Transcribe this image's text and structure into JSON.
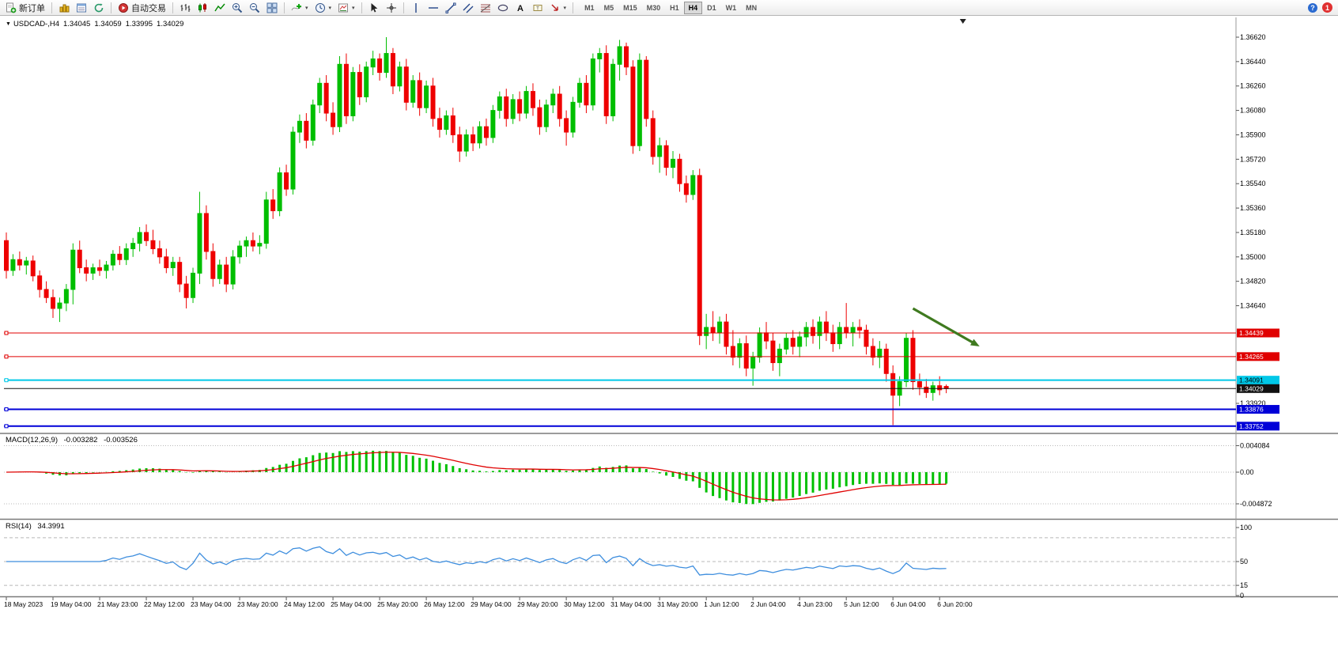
{
  "toolbar": {
    "new_order": {
      "label": "新订单"
    },
    "autotrading": {
      "label": "自动交易"
    },
    "timeframes": [
      {
        "label": "M1",
        "active": false
      },
      {
        "label": "M5",
        "active": false
      },
      {
        "label": "M15",
        "active": false
      },
      {
        "label": "M30",
        "active": false
      },
      {
        "label": "H1",
        "active": false
      },
      {
        "label": "H4",
        "active": true
      },
      {
        "label": "D1",
        "active": false
      },
      {
        "label": "W1",
        "active": false
      },
      {
        "label": "MN",
        "active": false
      }
    ],
    "notification_count": "1"
  },
  "chart_header": {
    "collapse_marker": "▼",
    "symbol": "USDCAD-,H4",
    "open": "1.34045",
    "high": "1.34059",
    "low": "1.33995",
    "close": "1.34029"
  },
  "macd_header": {
    "label": "MACD(12,26,9)",
    "value_main": "-0.003282",
    "value_signal": "-0.003526"
  },
  "rsi_header": {
    "label": "RSI(14)",
    "value": "34.3991"
  },
  "chart_data": {
    "type": "candlestick",
    "symbol": "USDCAD-",
    "timeframe": "H4",
    "colors": {
      "up": "#00BE00",
      "down": "#EE0000",
      "background": "#FFFFFF",
      "foreground": "#000000"
    },
    "price_axis": {
      "step": 0.0018,
      "visible_labels": [
        "1.36620",
        "1.36440",
        "1.36260",
        "1.36080",
        "1.35900",
        "1.35720",
        "1.35540",
        "1.35360",
        "1.35180",
        "1.35000",
        "1.34820",
        "1.34640",
        "1.33920"
      ]
    },
    "levels": [
      {
        "price": 1.34439,
        "label": "1.34439",
        "color": "#E00000",
        "width": 1,
        "text_color": "#FFFFFF"
      },
      {
        "price": 1.34265,
        "label": "1.34265",
        "color": "#E00000",
        "width": 1,
        "text_color": "#FFFFFF"
      },
      {
        "price": 1.34091,
        "label": "1.34091",
        "color": "#00C8E8",
        "width": 2,
        "text_color": "#000000"
      },
      {
        "price": 1.33876,
        "label": "1.33876",
        "color": "#0000D8",
        "width": 2,
        "text_color": "#FFFFFF"
      },
      {
        "price": 1.33752,
        "label": "1.33752",
        "color": "#0000D8",
        "width": 2,
        "text_color": "#FFFFFF"
      }
    ],
    "current_price": {
      "price": 1.34029,
      "label": "1.34029",
      "color": "#111111",
      "text_color": "#FFFFFF"
    },
    "time_labels": [
      "18 May 2023",
      "19 May 04:00",
      "21 May 23:00",
      "22 May 12:00",
      "23 May 04:00",
      "23 May 20:00",
      "24 May 12:00",
      "25 May 04:00",
      "25 May 20:00",
      "26 May 12:00",
      "29 May 04:00",
      "29 May 20:00",
      "30 May 12:00",
      "31 May 04:00",
      "31 May 20:00",
      "1 Jun 12:00",
      "2 Jun 04:00",
      "4 Jun 23:00",
      "5 Jun 12:00",
      "6 Jun 04:00",
      "6 Jun 20:00"
    ],
    "label_stride": 7,
    "candles": [
      [
        1.3512,
        1.3518,
        1.3484,
        1.349
      ],
      [
        1.349,
        1.3502,
        1.3486,
        1.3498
      ],
      [
        1.3498,
        1.3504,
        1.349,
        1.3494
      ],
      [
        1.3494,
        1.35,
        1.3487,
        1.3497
      ],
      [
        1.3497,
        1.3501,
        1.3482,
        1.3486
      ],
      [
        1.3486,
        1.349,
        1.347,
        1.3476
      ],
      [
        1.3476,
        1.3482,
        1.3466,
        1.347
      ],
      [
        1.347,
        1.3476,
        1.3455,
        1.3462
      ],
      [
        1.3462,
        1.347,
        1.3452,
        1.3466
      ],
      [
        1.3466,
        1.348,
        1.346,
        1.3476
      ],
      [
        1.3476,
        1.351,
        1.3465,
        1.3505
      ],
      [
        1.3505,
        1.3512,
        1.3488,
        1.3492
      ],
      [
        1.3492,
        1.3498,
        1.3482,
        1.3488
      ],
      [
        1.3488,
        1.3495,
        1.3483,
        1.3492
      ],
      [
        1.3492,
        1.3498,
        1.3486,
        1.349
      ],
      [
        1.349,
        1.3497,
        1.3484,
        1.3494
      ],
      [
        1.3494,
        1.3505,
        1.349,
        1.3502
      ],
      [
        1.3502,
        1.3508,
        1.3494,
        1.3498
      ],
      [
        1.3498,
        1.351,
        1.3494,
        1.3506
      ],
      [
        1.3506,
        1.3514,
        1.35,
        1.351
      ],
      [
        1.351,
        1.3522,
        1.3504,
        1.3518
      ],
      [
        1.3518,
        1.3524,
        1.3508,
        1.3512
      ],
      [
        1.3512,
        1.352,
        1.3502,
        1.3506
      ],
      [
        1.3506,
        1.3512,
        1.3495,
        1.35
      ],
      [
        1.35,
        1.3506,
        1.3488,
        1.3492
      ],
      [
        1.3492,
        1.35,
        1.3486,
        1.3496
      ],
      [
        1.3496,
        1.35,
        1.3474,
        1.348
      ],
      [
        1.348,
        1.3486,
        1.3462,
        1.347
      ],
      [
        1.347,
        1.3492,
        1.3466,
        1.3488
      ],
      [
        1.3488,
        1.3548,
        1.348,
        1.3532
      ],
      [
        1.3532,
        1.3538,
        1.3498,
        1.3504
      ],
      [
        1.3504,
        1.351,
        1.3478,
        1.3484
      ],
      [
        1.3484,
        1.3498,
        1.348,
        1.3494
      ],
      [
        1.3494,
        1.35,
        1.3474,
        1.348
      ],
      [
        1.348,
        1.3505,
        1.3476,
        1.35
      ],
      [
        1.35,
        1.3512,
        1.3495,
        1.3508
      ],
      [
        1.3508,
        1.3515,
        1.35,
        1.3512
      ],
      [
        1.3512,
        1.3518,
        1.3504,
        1.3508
      ],
      [
        1.3508,
        1.3516,
        1.3502,
        1.351
      ],
      [
        1.351,
        1.3548,
        1.3506,
        1.3542
      ],
      [
        1.3542,
        1.355,
        1.3528,
        1.3534
      ],
      [
        1.3534,
        1.3566,
        1.353,
        1.3562
      ],
      [
        1.3562,
        1.3568,
        1.3545,
        1.355
      ],
      [
        1.355,
        1.3596,
        1.3546,
        1.3592
      ],
      [
        1.3592,
        1.3605,
        1.3584,
        1.36
      ],
      [
        1.36,
        1.3606,
        1.358,
        1.3586
      ],
      [
        1.3586,
        1.3616,
        1.3582,
        1.3612
      ],
      [
        1.3612,
        1.3632,
        1.3606,
        1.3628
      ],
      [
        1.3628,
        1.3634,
        1.36,
        1.3606
      ],
      [
        1.3606,
        1.3614,
        1.359,
        1.3596
      ],
      [
        1.3596,
        1.3648,
        1.3592,
        1.3642
      ],
      [
        1.3642,
        1.365,
        1.3598,
        1.3604
      ],
      [
        1.3604,
        1.364,
        1.36,
        1.3636
      ],
      [
        1.3636,
        1.3642,
        1.3612,
        1.3618
      ],
      [
        1.3618,
        1.3644,
        1.3614,
        1.364
      ],
      [
        1.364,
        1.3652,
        1.3634,
        1.3646
      ],
      [
        1.3646,
        1.365,
        1.363,
        1.3636
      ],
      [
        1.3636,
        1.3662,
        1.3632,
        1.365
      ],
      [
        1.365,
        1.3654,
        1.362,
        1.3626
      ],
      [
        1.3626,
        1.3644,
        1.3622,
        1.364
      ],
      [
        1.364,
        1.3646,
        1.3608,
        1.3614
      ],
      [
        1.3614,
        1.3634,
        1.361,
        1.363
      ],
      [
        1.363,
        1.3636,
        1.3604,
        1.361
      ],
      [
        1.361,
        1.363,
        1.3606,
        1.3626
      ],
      [
        1.3626,
        1.3632,
        1.3596,
        1.3602
      ],
      [
        1.3602,
        1.361,
        1.3588,
        1.3594
      ],
      [
        1.3594,
        1.3608,
        1.359,
        1.3604
      ],
      [
        1.3604,
        1.361,
        1.3584,
        1.359
      ],
      [
        1.359,
        1.3596,
        1.357,
        1.3578
      ],
      [
        1.3578,
        1.3594,
        1.3574,
        1.359
      ],
      [
        1.359,
        1.3596,
        1.3578,
        1.3584
      ],
      [
        1.3584,
        1.36,
        1.358,
        1.3596
      ],
      [
        1.3596,
        1.3602,
        1.3582,
        1.3588
      ],
      [
        1.3588,
        1.3612,
        1.3584,
        1.3608
      ],
      [
        1.3608,
        1.3622,
        1.3602,
        1.3618
      ],
      [
        1.3618,
        1.3624,
        1.3596,
        1.3602
      ],
      [
        1.3602,
        1.362,
        1.3598,
        1.3616
      ],
      [
        1.3616,
        1.3622,
        1.36,
        1.3606
      ],
      [
        1.3606,
        1.3626,
        1.3602,
        1.3622
      ],
      [
        1.3622,
        1.3628,
        1.3604,
        1.361
      ],
      [
        1.361,
        1.3616,
        1.359,
        1.3596
      ],
      [
        1.3596,
        1.3616,
        1.3592,
        1.3612
      ],
      [
        1.3612,
        1.3624,
        1.3606,
        1.362
      ],
      [
        1.362,
        1.3626,
        1.3596,
        1.3602
      ],
      [
        1.3602,
        1.3608,
        1.3582,
        1.3592
      ],
      [
        1.3592,
        1.3618,
        1.3588,
        1.3614
      ],
      [
        1.3614,
        1.3632,
        1.361,
        1.3628
      ],
      [
        1.3628,
        1.3634,
        1.3606,
        1.3612
      ],
      [
        1.3612,
        1.365,
        1.3608,
        1.3646
      ],
      [
        1.3646,
        1.3654,
        1.3636,
        1.365
      ],
      [
        1.365,
        1.3656,
        1.3598,
        1.3604
      ],
      [
        1.3604,
        1.3646,
        1.36,
        1.3642
      ],
      [
        1.3642,
        1.366,
        1.363,
        1.3655
      ],
      [
        1.3655,
        1.3658,
        1.3634,
        1.364
      ],
      [
        1.364,
        1.3645,
        1.3576,
        1.3582
      ],
      [
        1.3582,
        1.365,
        1.3578,
        1.3645
      ],
      [
        1.3645,
        1.3648,
        1.3596,
        1.3602
      ],
      [
        1.3602,
        1.3608,
        1.3568,
        1.3574
      ],
      [
        1.3574,
        1.3588,
        1.3562,
        1.3582
      ],
      [
        1.3582,
        1.3586,
        1.356,
        1.3566
      ],
      [
        1.3566,
        1.3578,
        1.3558,
        1.3572
      ],
      [
        1.3572,
        1.3576,
        1.3548,
        1.3554
      ],
      [
        1.3554,
        1.356,
        1.354,
        1.3546
      ],
      [
        1.3546,
        1.3564,
        1.3542,
        1.356
      ],
      [
        1.356,
        1.3565,
        1.3435,
        1.3442
      ],
      [
        1.3442,
        1.3458,
        1.3432,
        1.3448
      ],
      [
        1.3448,
        1.346,
        1.3438,
        1.3444
      ],
      [
        1.3444,
        1.3456,
        1.3436,
        1.3452
      ],
      [
        1.3452,
        1.3458,
        1.3428,
        1.3434
      ],
      [
        1.3434,
        1.3446,
        1.342,
        1.3426
      ],
      [
        1.3426,
        1.344,
        1.3418,
        1.3436
      ],
      [
        1.3436,
        1.3442,
        1.3412,
        1.3418
      ],
      [
        1.3418,
        1.343,
        1.3405,
        1.3426
      ],
      [
        1.3426,
        1.3448,
        1.3422,
        1.3444
      ],
      [
        1.3444,
        1.3452,
        1.3432,
        1.3438
      ],
      [
        1.3438,
        1.3444,
        1.3416,
        1.3422
      ],
      [
        1.3422,
        1.3436,
        1.3412,
        1.3432
      ],
      [
        1.3432,
        1.3444,
        1.3428,
        1.344
      ],
      [
        1.344,
        1.3446,
        1.3428,
        1.3434
      ],
      [
        1.3434,
        1.3445,
        1.3426,
        1.3441
      ],
      [
        1.3441,
        1.3452,
        1.3434,
        1.3448
      ],
      [
        1.3448,
        1.3454,
        1.3436,
        1.3442
      ],
      [
        1.3442,
        1.3456,
        1.3432,
        1.3452
      ],
      [
        1.3452,
        1.346,
        1.3438,
        1.3444
      ],
      [
        1.3444,
        1.345,
        1.343,
        1.3436
      ],
      [
        1.3436,
        1.3452,
        1.3432,
        1.3448
      ],
      [
        1.3448,
        1.3466,
        1.344,
        1.3444
      ],
      [
        1.3444,
        1.3452,
        1.3434,
        1.3448
      ],
      [
        1.3448,
        1.3454,
        1.344,
        1.3446
      ],
      [
        1.3446,
        1.345,
        1.3428,
        1.3434
      ],
      [
        1.3434,
        1.344,
        1.342,
        1.3426
      ],
      [
        1.3426,
        1.3438,
        1.3418,
        1.3432
      ],
      [
        1.3432,
        1.3436,
        1.3408,
        1.3414
      ],
      [
        1.3414,
        1.342,
        1.3376,
        1.3398
      ],
      [
        1.3398,
        1.3412,
        1.339,
        1.3408
      ],
      [
        1.3408,
        1.3444,
        1.3404,
        1.344
      ],
      [
        1.344,
        1.3446,
        1.3402,
        1.3408
      ],
      [
        1.3408,
        1.3414,
        1.3398,
        1.3404
      ],
      [
        1.3404,
        1.341,
        1.3396,
        1.34
      ],
      [
        1.34,
        1.3408,
        1.3394,
        1.3405
      ],
      [
        1.3405,
        1.3412,
        1.3398,
        1.3402
      ],
      [
        1.34045,
        1.34059,
        1.33995,
        1.34029
      ]
    ],
    "indicators": [
      {
        "name": "MACD",
        "params": "12,26,9",
        "values_displayed": [
          "-0.003282",
          "-0.003526"
        ],
        "axis_labels": [
          "0.004084",
          "0.00",
          "-0.004872"
        ],
        "histogram_color": "#00C000",
        "signal_color": "#E00000"
      },
      {
        "name": "RSI",
        "params": "14",
        "value_displayed": "34.3991",
        "axis_labels": [
          "100",
          "50",
          "15",
          "0"
        ],
        "dashed_levels": [
          85,
          50,
          15
        ],
        "line_color": "#3E8EDE"
      }
    ],
    "annotation_arrow": {
      "from_bar": 136,
      "from_price": 1.3462,
      "to_bar": 146,
      "to_price": 1.3434,
      "color": "#3F7A1F"
    },
    "shift_marker_bar": 143.5
  }
}
